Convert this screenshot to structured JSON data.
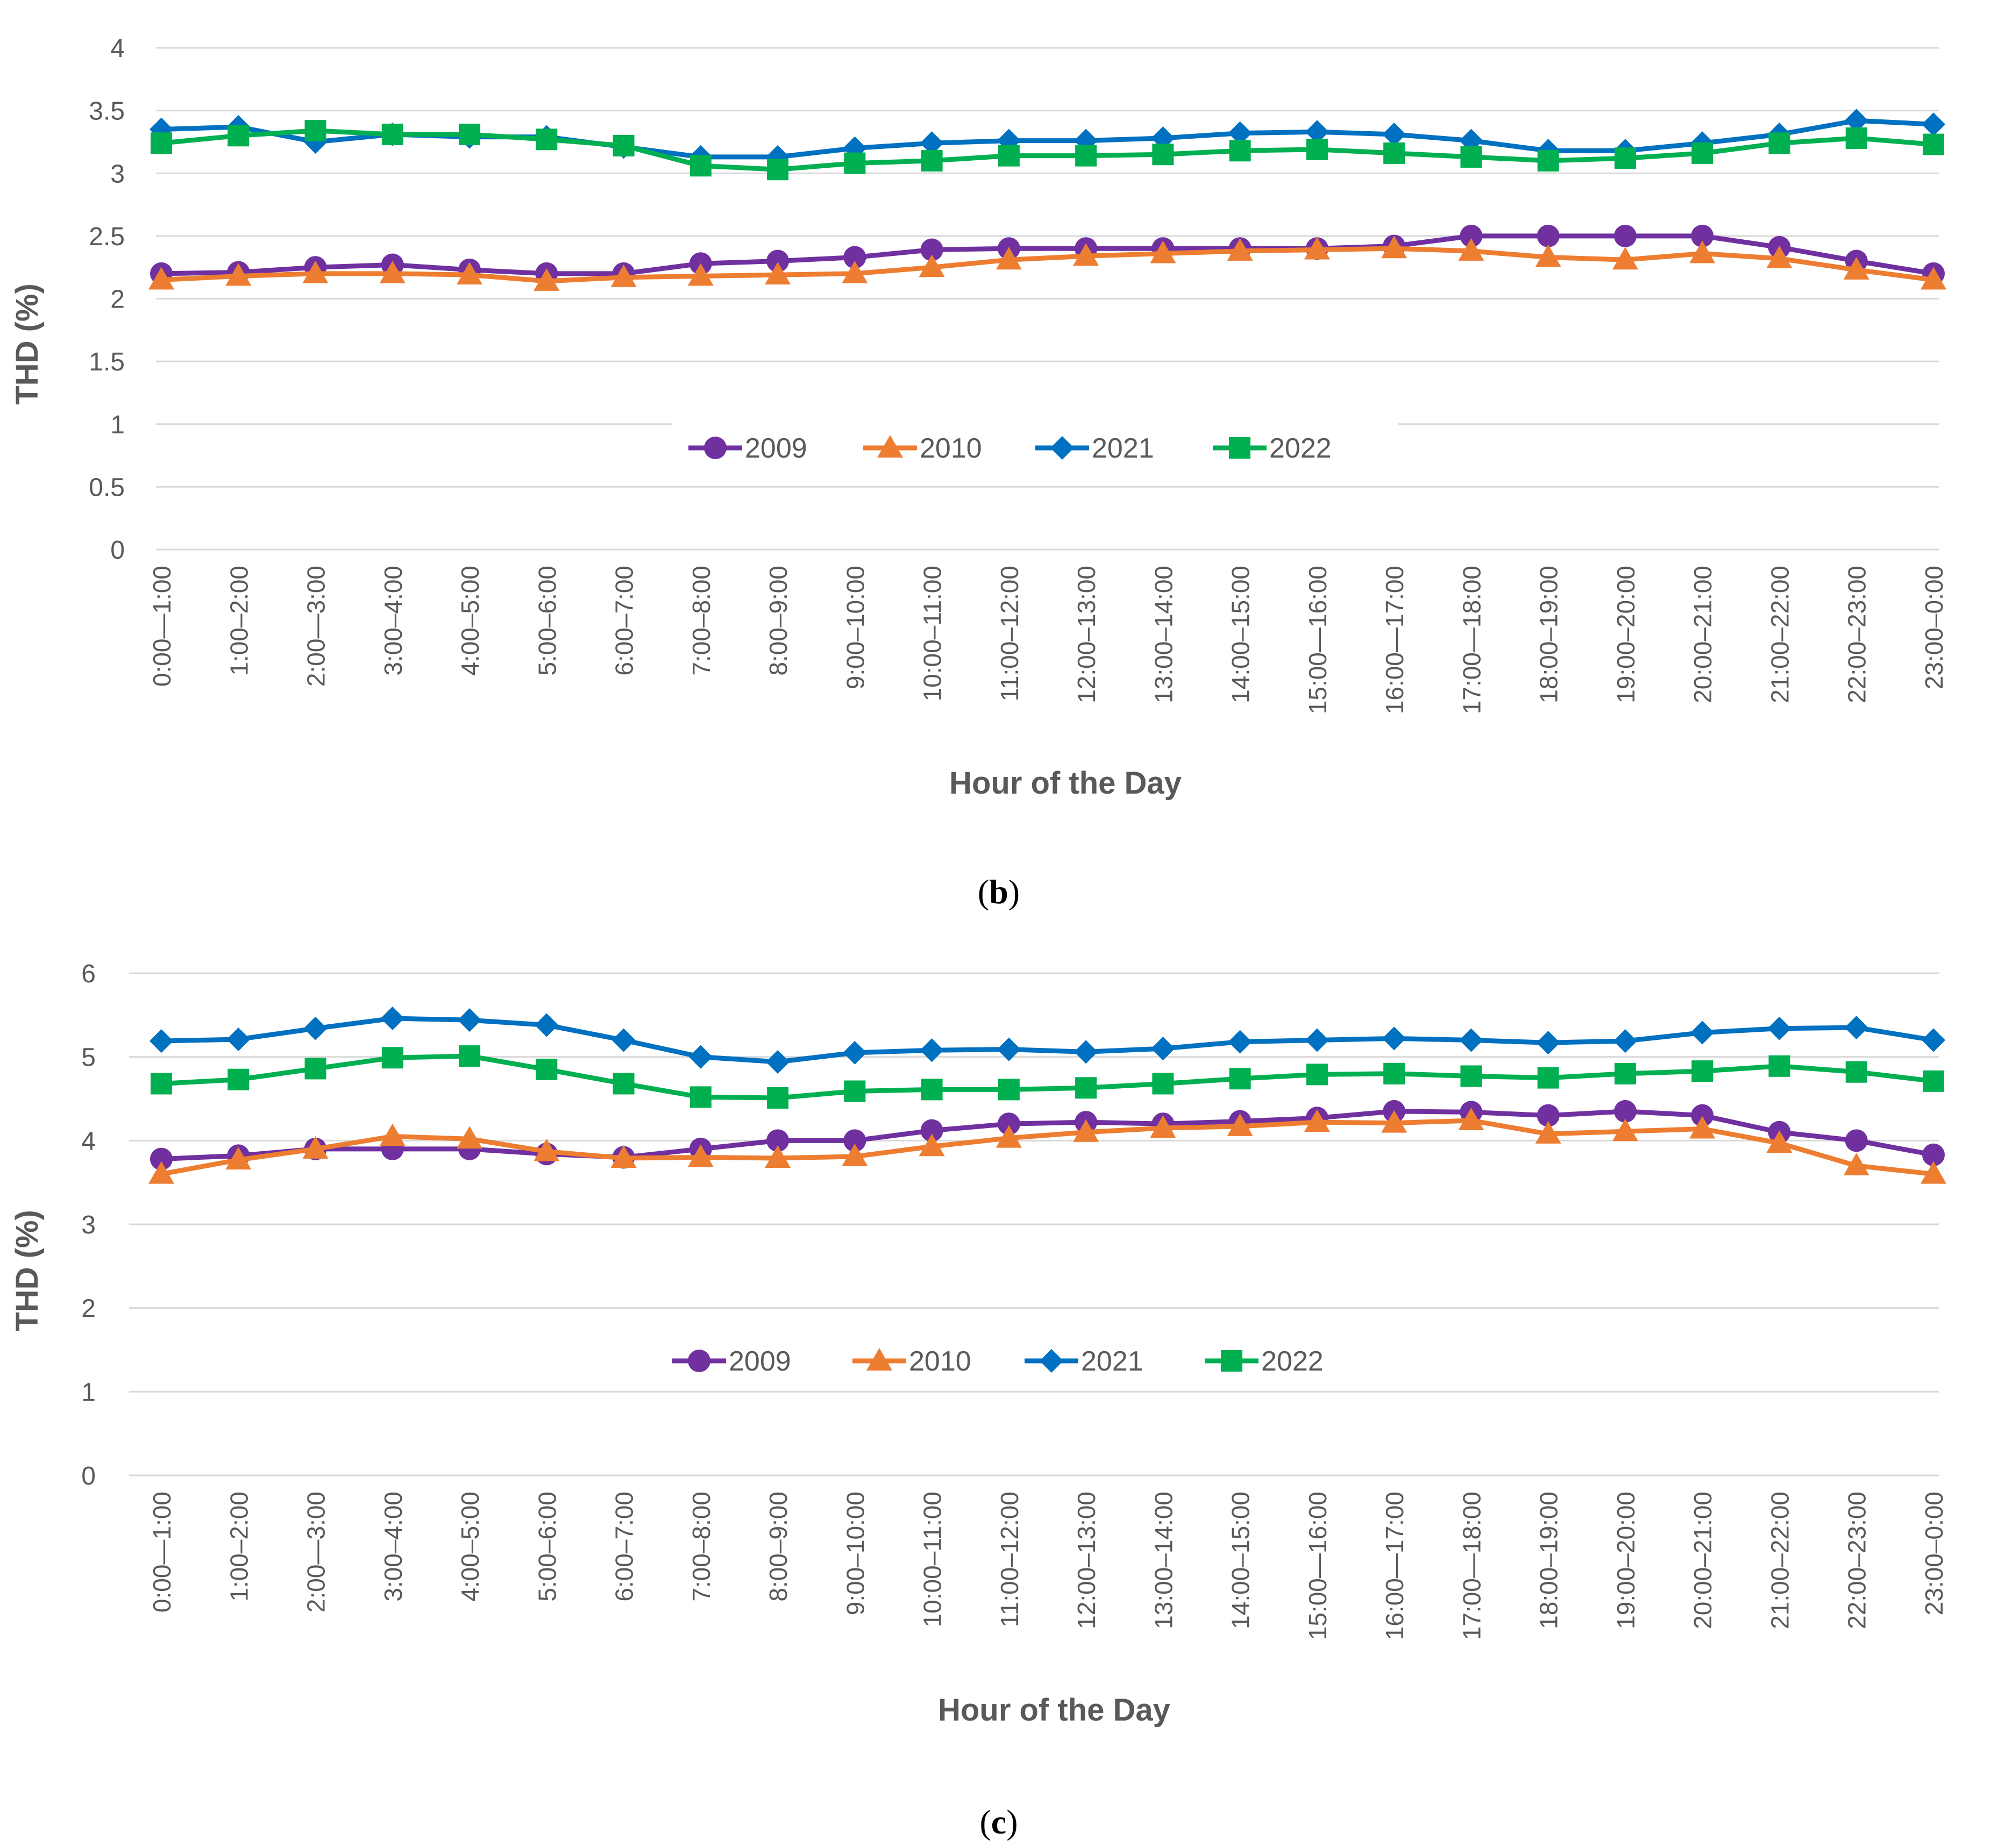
{
  "chart_data": [
    {
      "panel_label_open": "(",
      "panel_letter": "b",
      "panel_label_close": ")",
      "type": "line",
      "ylabel": "THD (%)",
      "xlabel": "Hour of the Day",
      "ylim": [
        0,
        4
      ],
      "yticks": [
        "0",
        "0.5",
        "1",
        "1.5",
        "2",
        "2.5",
        "3",
        "3.5",
        "4"
      ],
      "grid": true,
      "legend_position": "center",
      "categories": [
        "0:00—1:00",
        "1:00–2:00",
        "2:00—3:00",
        "3:00–4:00",
        "4:00–5:00",
        "5:00–6:00",
        "6:00–7:00",
        "7:00–8:00",
        "8:00–9:00",
        "9:00–10:00",
        "10:00–11:00",
        "11:00–12:00",
        "12:00–13:00",
        "13:00–14:00",
        "14:00–15:00",
        "15:00—16:00",
        "16:00—17:00",
        "17:00—18:00",
        "18:00–19:00",
        "19:00–20:00",
        "20:00–21:00",
        "21:00–22:00",
        "22:00–23:00",
        "23:00–0:00"
      ],
      "series": [
        {
          "name": "2009",
          "color": "#7030a0",
          "marker": "circle",
          "values": [
            2.2,
            2.21,
            2.25,
            2.27,
            2.23,
            2.2,
            2.2,
            2.28,
            2.3,
            2.33,
            2.39,
            2.4,
            2.4,
            2.4,
            2.4,
            2.4,
            2.42,
            2.5,
            2.5,
            2.5,
            2.5,
            2.41,
            2.3,
            2.2
          ]
        },
        {
          "name": "2010",
          "color": "#ed7d31",
          "marker": "triangle",
          "values": [
            2.15,
            2.18,
            2.2,
            2.2,
            2.19,
            2.14,
            2.17,
            2.18,
            2.19,
            2.2,
            2.25,
            2.31,
            2.34,
            2.36,
            2.38,
            2.39,
            2.4,
            2.38,
            2.33,
            2.31,
            2.36,
            2.32,
            2.23,
            2.15
          ]
        },
        {
          "name": "2021",
          "color": "#0070c0",
          "marker": "diamond",
          "values": [
            3.35,
            3.37,
            3.25,
            3.31,
            3.29,
            3.29,
            3.21,
            3.13,
            3.13,
            3.2,
            3.24,
            3.26,
            3.26,
            3.28,
            3.32,
            3.33,
            3.31,
            3.26,
            3.18,
            3.18,
            3.24,
            3.31,
            3.42,
            3.39
          ]
        },
        {
          "name": "2022",
          "color": "#00b050",
          "marker": "square",
          "values": [
            3.24,
            3.3,
            3.34,
            3.31,
            3.31,
            3.27,
            3.22,
            3.06,
            3.03,
            3.08,
            3.1,
            3.14,
            3.14,
            3.15,
            3.18,
            3.19,
            3.16,
            3.13,
            3.1,
            3.12,
            3.16,
            3.24,
            3.28,
            3.23
          ]
        }
      ]
    },
    {
      "panel_label_open": "(",
      "panel_letter": "c",
      "panel_label_close": ")",
      "type": "line",
      "ylabel": "THD (%)",
      "xlabel": "Hour of the Day",
      "ylim": [
        0,
        6
      ],
      "yticks": [
        "0",
        "1",
        "2",
        "3",
        "4",
        "5",
        "6"
      ],
      "grid": true,
      "legend_position": "center",
      "categories": [
        "0:00—1:00",
        "1:00–2:00",
        "2:00—3:00",
        "3:00–4:00",
        "4:00–5:00",
        "5:00–6:00",
        "6:00–7:00",
        "7:00–8:00",
        "8:00–9:00",
        "9:00–10:00",
        "10:00–11:00",
        "11:00–12:00",
        "12:00–13:00",
        "13:00–14:00",
        "14:00–15:00",
        "15:00—16:00",
        "16:00—17:00",
        "17:00—18:00",
        "18:00–19:00",
        "19:00–20:00",
        "20:00–21:00",
        "21:00–22:00",
        "22:00–23:00",
        "23:00–0:00"
      ],
      "series": [
        {
          "name": "2009",
          "color": "#7030a0",
          "marker": "circle",
          "values": [
            3.78,
            3.82,
            3.9,
            3.9,
            3.9,
            3.84,
            3.8,
            3.9,
            4.0,
            4.0,
            4.12,
            4.2,
            4.22,
            4.2,
            4.23,
            4.27,
            4.35,
            4.34,
            4.3,
            4.35,
            4.3,
            4.1,
            4.0,
            3.83
          ]
        },
        {
          "name": "2010",
          "color": "#ed7d31",
          "marker": "triangle",
          "values": [
            3.6,
            3.77,
            3.9,
            4.05,
            4.02,
            3.87,
            3.79,
            3.8,
            3.79,
            3.81,
            3.93,
            4.03,
            4.1,
            4.15,
            4.17,
            4.22,
            4.21,
            4.24,
            4.08,
            4.11,
            4.14,
            3.97,
            3.7,
            3.6
          ]
        },
        {
          "name": "2021",
          "color": "#0070c0",
          "marker": "diamond",
          "values": [
            5.19,
            5.21,
            5.34,
            5.46,
            5.44,
            5.38,
            5.2,
            5.0,
            4.94,
            5.05,
            5.08,
            5.09,
            5.06,
            5.1,
            5.18,
            5.2,
            5.22,
            5.2,
            5.17,
            5.19,
            5.29,
            5.34,
            5.35,
            5.2
          ]
        },
        {
          "name": "2022",
          "color": "#00b050",
          "marker": "square",
          "values": [
            4.68,
            4.73,
            4.86,
            4.99,
            5.01,
            4.85,
            4.68,
            4.52,
            4.51,
            4.59,
            4.61,
            4.61,
            4.63,
            4.68,
            4.74,
            4.79,
            4.8,
            4.77,
            4.75,
            4.8,
            4.83,
            4.89,
            4.82,
            4.71
          ]
        }
      ]
    }
  ]
}
